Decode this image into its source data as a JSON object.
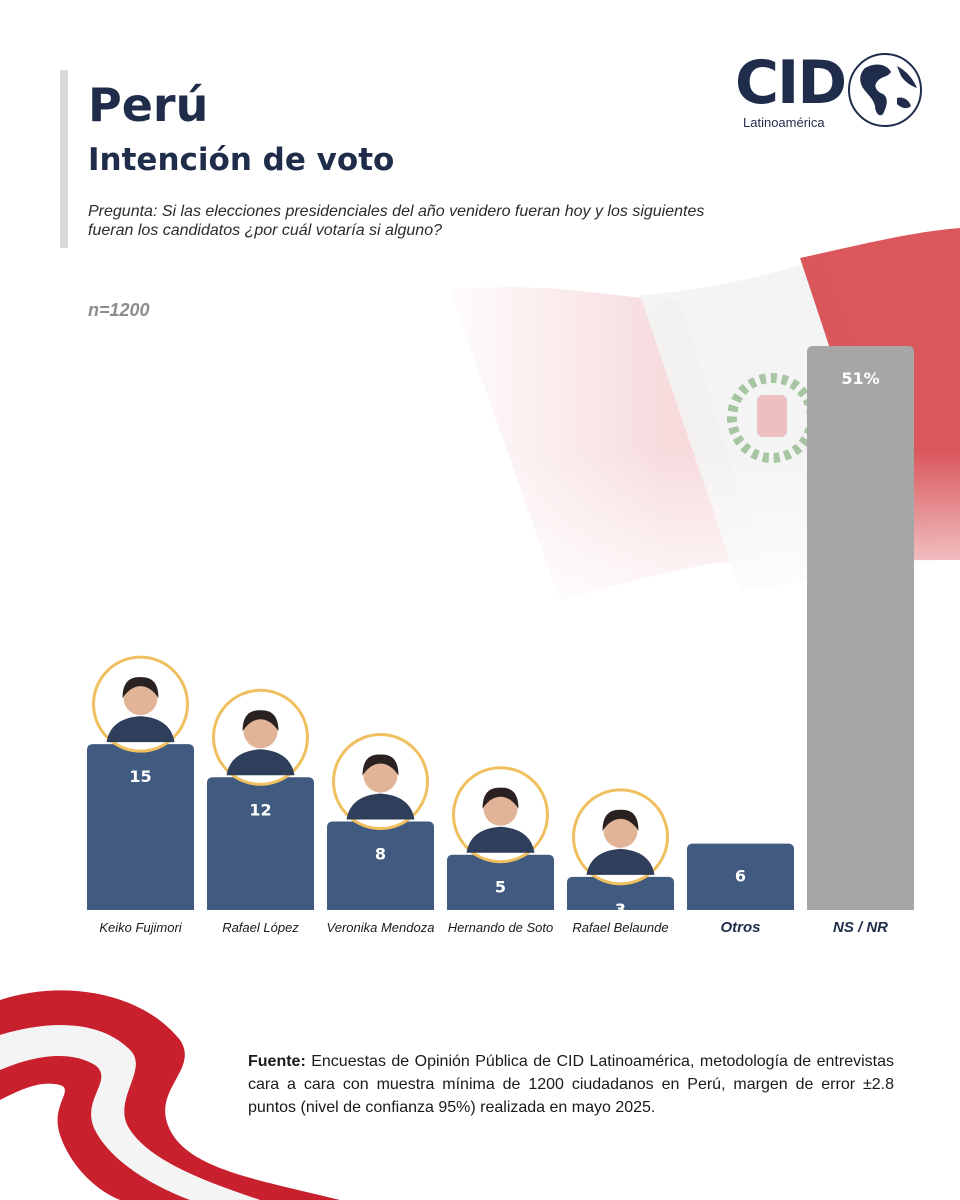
{
  "header": {
    "title": "Perú",
    "subtitle": "Intención de voto",
    "question": "Pregunta: Si las elecciones presidenciales del año venidero fueran hoy y los siguientes fueran los candidatos ¿por cuál votaría si alguno?",
    "sample": "n=1200"
  },
  "logo": {
    "name": "CID",
    "region": "Latinoamérica"
  },
  "colors": {
    "bar": "#405b7f",
    "bar_nsnr": "#a6a6a6",
    "ring": "#f0c060",
    "dark": "#1f2d4a"
  },
  "chart_data": {
    "type": "bar",
    "categories": [
      "Keiko Fujimori",
      "Rafael López",
      "Veronika Mendoza",
      "Hernando de Soto",
      "Rafael Belaunde",
      "Otros",
      "NS / NR"
    ],
    "values": [
      15,
      12,
      8,
      5,
      3,
      6,
      51
    ],
    "labels": [
      "15",
      "12",
      "8",
      "5",
      "3",
      "6",
      "51%"
    ],
    "title": "Intención de voto",
    "xlabel": "",
    "ylabel": "",
    "ylim": [
      0,
      55
    ],
    "grid": false,
    "legend": "none"
  },
  "footer": {
    "source_label": "Fuente:",
    "source_text": " Encuestas de Opinión Pública de CID Latinoamérica, metodología de entrevistas cara a cara con muestra mínima de 1200 ciudadanos en Perú, margen de error ±2.8 puntos (nivel de confianza 95%) realizada en mayo 2025."
  }
}
